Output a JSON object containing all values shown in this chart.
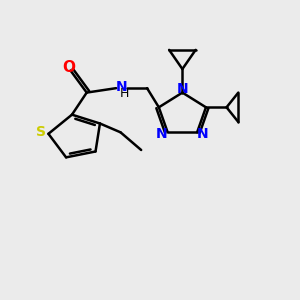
{
  "bg_color": "#EBEBEB",
  "bond_color": "#000000",
  "S_color": "#CCCC00",
  "O_color": "#FF0000",
  "N_color": "#0000FF",
  "C_color": "#000000",
  "lw": 1.8,
  "figsize": [
    3.0,
    3.0
  ],
  "dpi": 100,
  "xlim": [
    0,
    10
  ],
  "ylim": [
    0,
    10
  ]
}
